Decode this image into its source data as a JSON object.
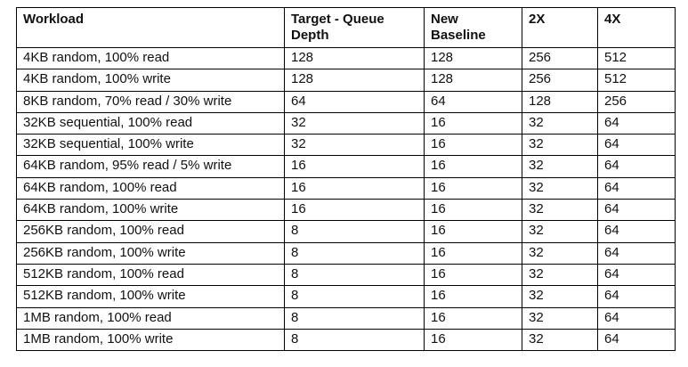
{
  "table": {
    "headers": [
      "Workload",
      "Target - Queue Depth",
      "New Baseline",
      "2X",
      "4X"
    ],
    "rows": [
      [
        "4KB random, 100% read",
        "128",
        "128",
        "256",
        "512"
      ],
      [
        "4KB random, 100% write",
        "128",
        "128",
        "256",
        "512"
      ],
      [
        "8KB random, 70% read / 30% write",
        "64",
        "64",
        "128",
        "256"
      ],
      [
        "32KB sequential, 100% read",
        "32",
        "16",
        "32",
        "64"
      ],
      [
        "32KB sequential, 100% write",
        "32",
        "16",
        "32",
        "64"
      ],
      [
        "64KB random, 95% read / 5% write",
        "16",
        "16",
        "32",
        "64"
      ],
      [
        "64KB random, 100% read",
        "16",
        "16",
        "32",
        "64"
      ],
      [
        "64KB random, 100% write",
        "16",
        "16",
        "32",
        "64"
      ],
      [
        "256KB random, 100% read",
        "8",
        "16",
        "32",
        "64"
      ],
      [
        "256KB random, 100% write",
        "8",
        "16",
        "32",
        "64"
      ],
      [
        "512KB random, 100% read",
        "8",
        "16",
        "32",
        "64"
      ],
      [
        "512KB random, 100% write",
        "8",
        "16",
        "32",
        "64"
      ],
      [
        "1MB random, 100% read",
        "8",
        "16",
        "32",
        "64"
      ],
      [
        "1MB random, 100% write",
        "8",
        "16",
        "32",
        "64"
      ]
    ]
  }
}
